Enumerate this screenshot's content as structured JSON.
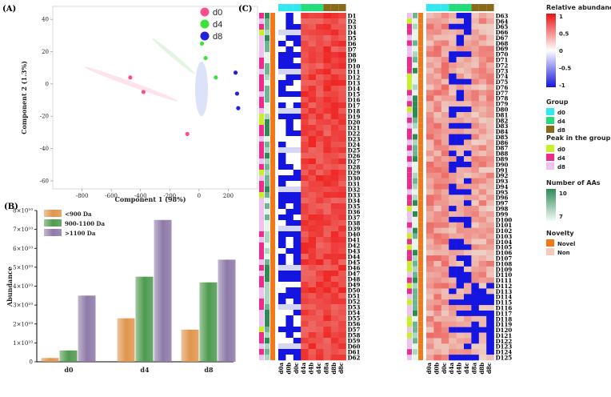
{
  "panels": {
    "a": "(A)",
    "b": "(B)",
    "c": "(C)"
  },
  "chart_data": [
    {
      "type": "scatter",
      "panel": "(A)",
      "xlabel": "Component 1 (98%)",
      "ylabel": "Component 2 (1.3%)",
      "xlim": [
        -1000,
        400
      ],
      "ylim": [
        -65,
        48
      ],
      "xticks": [
        "-800",
        "-600",
        "-400",
        "-200",
        "0",
        "200"
      ],
      "yticks": [
        "40",
        "20",
        "0",
        "-20",
        "-40",
        "-60"
      ],
      "xticks_num": [
        -800,
        -600,
        -400,
        -200,
        0,
        200
      ],
      "yticks_num": [
        40,
        20,
        0,
        -20,
        -40,
        -60
      ],
      "series": [
        {
          "name": "d0",
          "color": "#ff4f8b",
          "x": [
            -470,
            -380,
            -80
          ],
          "y": [
            4,
            -5,
            -31
          ]
        },
        {
          "name": "d4",
          "color": "#3ae23a",
          "x": [
            20,
            45,
            115
          ],
          "y": [
            25,
            16,
            4
          ]
        },
        {
          "name": "d8",
          "color": "#2222dd",
          "x": [
            250,
            260,
            268
          ],
          "y": [
            7,
            -6,
            -15
          ]
        }
      ]
    },
    {
      "type": "bar",
      "panel": "(B)",
      "ylabel": "Abundance",
      "categories": [
        "d0",
        "d4",
        "d8"
      ],
      "ylim": [
        0,
        80000000000.0
      ],
      "yticks": [
        "0",
        "1×10¹⁰",
        "2×10¹⁰",
        "3×10¹⁰",
        "4×10¹⁰",
        "5×10¹⁰",
        "6×10¹⁰",
        "7×10¹⁰",
        "8×10¹⁰"
      ],
      "series": [
        {
          "name": "<900 Da",
          "color": "#e0954f",
          "values": [
            2000000000.0,
            23000000000.0,
            17000000000.0
          ]
        },
        {
          "name": "900-1100 Da",
          "color": "#4f9a4f",
          "values": [
            6000000000.0,
            45000000000.0,
            42000000000.0
          ]
        },
        {
          "name": ">1100 Da",
          "color": "#8e7aa8",
          "values": [
            35000000000.0,
            75000000000.0,
            54000000000.0
          ]
        }
      ]
    },
    {
      "type": "heatmap",
      "panel": "(C)",
      "columns": [
        "d0a",
        "d0b",
        "d0c",
        "d4a",
        "d4b",
        "d4c",
        "d8a",
        "d8b",
        "d8c"
      ],
      "rows_left": [
        "D1",
        "D2",
        "D3",
        "D4",
        "D5",
        "D6",
        "D7",
        "D8",
        "D9",
        "D10",
        "D11",
        "D12",
        "D13",
        "D14",
        "D15",
        "D16",
        "D17",
        "D18",
        "D19",
        "D20",
        "D21",
        "D22",
        "D23",
        "D24",
        "D25",
        "D26",
        "D27",
        "D28",
        "D29",
        "D30",
        "D31",
        "D32",
        "D33",
        "D34",
        "D35",
        "D36",
        "D37",
        "D38",
        "D39",
        "D40",
        "D41",
        "D42",
        "D43",
        "D44",
        "D45",
        "D46",
        "D47",
        "D48",
        "D49",
        "D50",
        "D51",
        "D52",
        "D53",
        "D54",
        "D55",
        "D56",
        "D57",
        "D58",
        "D59",
        "D60",
        "D61",
        "D62"
      ],
      "rows_right": [
        "D63",
        "D64",
        "D65",
        "D66",
        "D67",
        "D68",
        "D69",
        "D70",
        "D71",
        "D72",
        "D73",
        "D74",
        "D75",
        "D76",
        "D77",
        "D78",
        "D79",
        "D80",
        "D81",
        "D82",
        "D83",
        "D84",
        "D85",
        "D86",
        "D87",
        "D88",
        "D89",
        "D90",
        "D91",
        "D92",
        "D93",
        "D94",
        "D95",
        "D96",
        "D97",
        "D98",
        "D99",
        "D100",
        "D101",
        "D102",
        "D103",
        "D104",
        "D105",
        "D106",
        "D107",
        "D108",
        "D109",
        "D110",
        "D111",
        "D112",
        "D113",
        "D114",
        "D115",
        "D116",
        "D117",
        "D118",
        "D119",
        "D120",
        "D121",
        "D122",
        "D123",
        "D124",
        "D125"
      ],
      "color_scale": {
        "min": -1,
        "max": 1,
        "ticks": [
          "1",
          "0.5",
          "0",
          "-0.5",
          "-1"
        ],
        "low": "#1515e0",
        "mid": "#ffffff",
        "high": "#ee1111"
      }
    }
  ],
  "legend": {
    "title": "Relative abundance",
    "group_title": "Group",
    "groups": [
      {
        "label": "d0",
        "color": "#33e6f0"
      },
      {
        "label": "d4",
        "color": "#22dd7a"
      },
      {
        "label": "d8",
        "color": "#8a6a1a"
      }
    ],
    "peak_title": "Peak in the group",
    "peaks": [
      {
        "label": "d0",
        "color": "#c8f028"
      },
      {
        "label": "d4",
        "color": "#ee2a8a"
      },
      {
        "label": "d8",
        "color": "#f0c0f0"
      }
    ],
    "aa_title": "Number of AAs",
    "aa_high": "10",
    "aa_low": "7",
    "novelty_title": "Novelty",
    "novelty": [
      {
        "label": "Novel",
        "color": "#f07a1a"
      },
      {
        "label": "Non",
        "color": "#fac8b8"
      }
    ]
  }
}
